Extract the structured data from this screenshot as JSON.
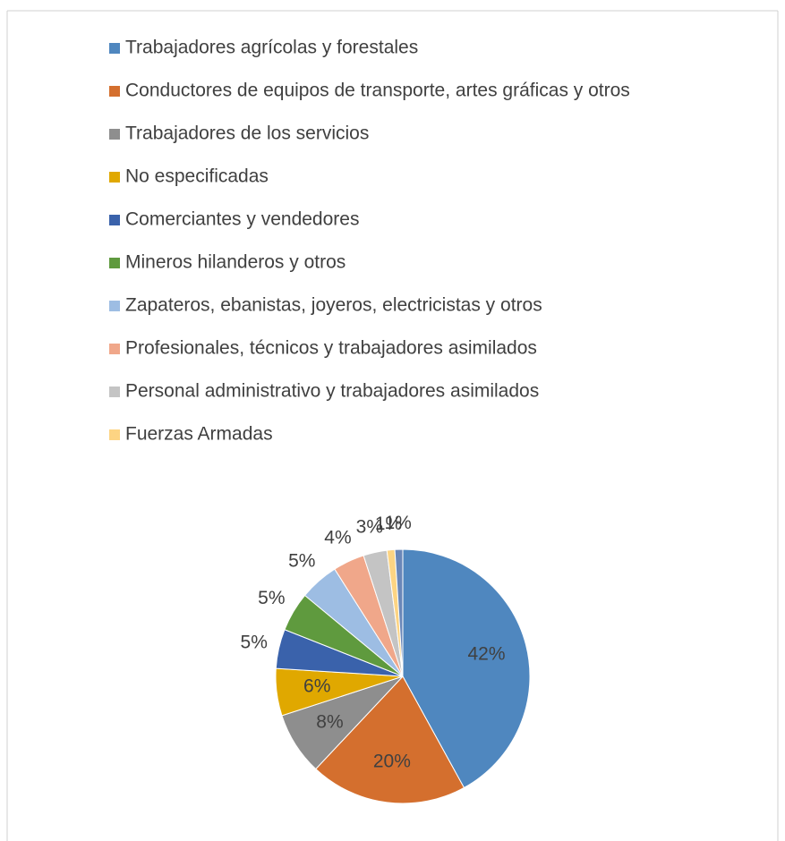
{
  "chart_data": {
    "type": "pie",
    "categories": [
      "Trabajadores agrícolas y forestales",
      "Conductores de equipos de transporte, artes gráficas y otros",
      "Trabajadores de los servicios",
      "No especificadas",
      "Comerciantes y vendedores",
      "Mineros hilanderos y otros",
      "Zapateros, ebanistas, joyeros, electricistas y otros",
      "Profesionales, técnicos y trabajadores asimilados",
      "Personal administrativo y trabajadores asimilados",
      "Fuerzas Armadas",
      null
    ],
    "values": [
      42,
      20,
      8,
      6,
      5,
      5,
      5,
      4,
      3,
      1,
      1
    ],
    "value_labels": [
      "42%",
      "20%",
      "8%",
      "6%",
      "5%",
      "5%",
      "5%",
      "4%",
      "3%",
      "1%",
      "1%"
    ],
    "colors": [
      "#4f87bf",
      "#d46f2e",
      "#8e8e8e",
      "#e0a800",
      "#3a62ab",
      "#5f9a3e",
      "#9dbde3",
      "#f0a78a",
      "#c4c4c4",
      "#fdd483",
      "#6a87b8"
    ],
    "legend": "top"
  }
}
